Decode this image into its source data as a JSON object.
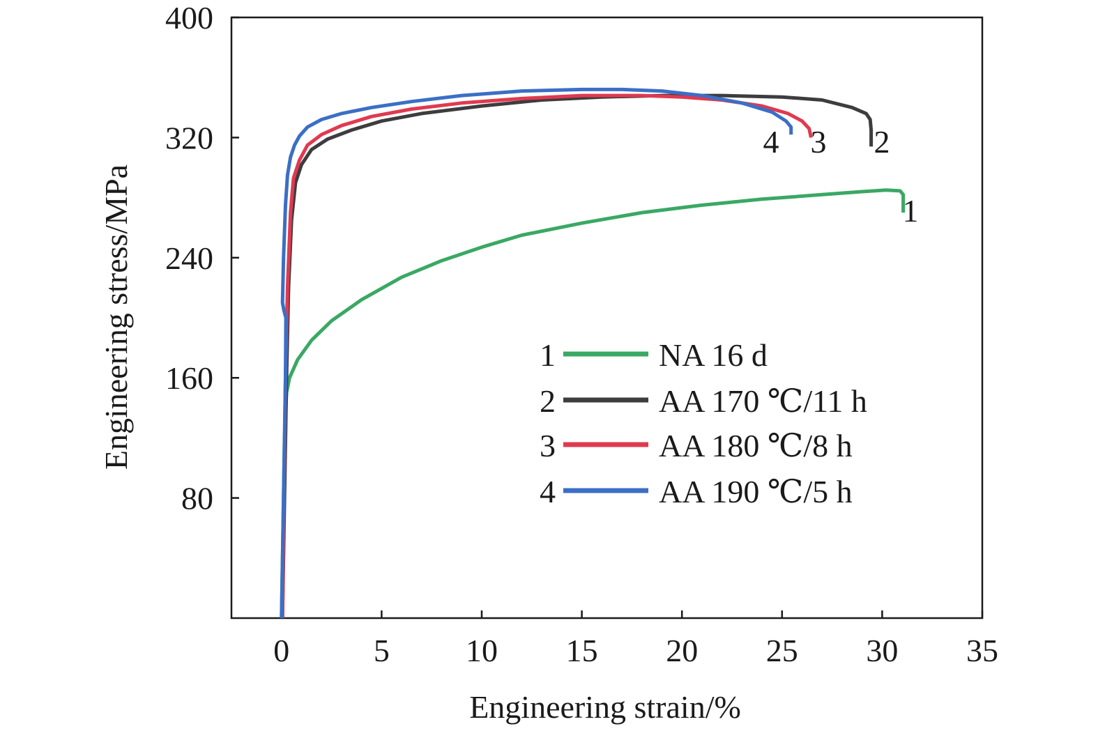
{
  "chart_data": {
    "type": "line",
    "title": "",
    "xlabel": "Engineering strain/%",
    "ylabel": "Engineering stress/MPa",
    "xlim": [
      -2.5,
      35
    ],
    "ylim": [
      0,
      400
    ],
    "xticks": [
      0,
      5,
      10,
      15,
      20,
      25,
      30,
      35
    ],
    "yticks": [
      80,
      160,
      240,
      320,
      400
    ],
    "xtick_labels": [
      "0",
      "5",
      "10",
      "15",
      "20",
      "25",
      "30",
      "35"
    ],
    "ytick_labels": [
      "80",
      "160",
      "240",
      "320",
      "400"
    ],
    "grid": false,
    "legend_position": "lower-right",
    "series": [
      {
        "id": "1",
        "name": "NA 16 d",
        "color": "#3aa864",
        "end_label": "1",
        "x": [
          0.0,
          0.1,
          0.15,
          0.25,
          0.4,
          0.8,
          1.5,
          2.5,
          4,
          6,
          8,
          10,
          12,
          15,
          18,
          21,
          24,
          27,
          29,
          30.2,
          30.9,
          31.05,
          31.05
        ],
        "y": [
          0,
          80,
          120,
          150,
          160,
          172,
          185,
          198,
          212,
          227,
          238,
          247,
          255,
          263,
          270,
          275,
          279,
          282,
          284,
          285,
          284.5,
          282,
          270
        ]
      },
      {
        "id": "2",
        "name": "AA 170 ℃/11 h",
        "color": "#3d3d3f",
        "end_label": "2",
        "x": [
          0.05,
          0.15,
          0.25,
          0.35,
          0.5,
          0.7,
          1.0,
          1.5,
          2.3,
          3.5,
          5,
          7,
          10,
          13,
          16,
          19,
          22,
          25,
          27,
          28.5,
          29.2,
          29.4,
          29.45,
          29.45
        ],
        "y": [
          0,
          80,
          160,
          220,
          265,
          290,
          302,
          312,
          319,
          325,
          331,
          336,
          341,
          345,
          347,
          348,
          348,
          347,
          345,
          340,
          336,
          332,
          325,
          314
        ]
      },
      {
        "id": "3",
        "name": "AA 180 ℃/8 h",
        "color": "#e03a50",
        "end_label": "3",
        "x": [
          0.05,
          0.12,
          0.2,
          0.3,
          0.45,
          0.6,
          0.9,
          1.3,
          2.0,
          3.0,
          4.5,
          6.5,
          9,
          12,
          15,
          18,
          20,
          22,
          24,
          25.3,
          26.0,
          26.35,
          26.45
        ],
        "y": [
          0,
          80,
          160,
          220,
          270,
          293,
          305,
          315,
          322,
          328,
          334,
          339,
          343,
          346,
          348,
          348,
          347,
          345,
          341,
          336,
          331,
          326,
          320
        ]
      },
      {
        "id": "4",
        "name": "AA 190 ℃/5 h",
        "color": "#3b6fc6",
        "end_label": "4",
        "x": [
          0.0,
          0.1,
          0.2,
          0.22,
          0.12,
          0.05,
          0.1,
          0.2,
          0.3,
          0.45,
          0.65,
          0.9,
          1.3,
          2.0,
          3.0,
          4.5,
          6.5,
          9,
          12,
          15,
          17,
          19,
          21,
          23,
          24.5,
          25.2,
          25.45,
          25.45
        ],
        "y": [
          0,
          80,
          160,
          200,
          205,
          210,
          240,
          275,
          295,
          307,
          315,
          321,
          327,
          332,
          336,
          340,
          344,
          348,
          351,
          352,
          352,
          351,
          348,
          343,
          337,
          331,
          327,
          322
        ]
      }
    ],
    "legend": [
      {
        "id": "1",
        "text": "NA 16 d"
      },
      {
        "id": "2",
        "text": "AA 170 ℃/11 h"
      },
      {
        "id": "3",
        "text": "AA 180 ℃/8 h"
      },
      {
        "id": "4",
        "text": "AA 190 ℃/5 h"
      }
    ]
  }
}
